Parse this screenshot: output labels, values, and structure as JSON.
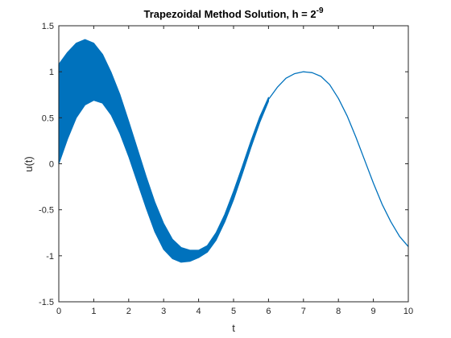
{
  "chart_data": {
    "type": "line",
    "title": "Trapezoidal Method Solution, h = 2",
    "title_superscript": "-9",
    "xlabel": "t",
    "ylabel": "u(t)",
    "xlim": [
      0,
      10
    ],
    "ylim": [
      -1.5,
      1.5
    ],
    "xticks": [
      "0",
      "1",
      "2",
      "3",
      "4",
      "5",
      "6",
      "7",
      "8",
      "9",
      "10"
    ],
    "yticks": [
      "-1.5",
      "-1",
      "-0.5",
      "0",
      "0.5",
      "1",
      "1.5"
    ],
    "grid": false,
    "legend": "none",
    "series_color": "#0072BD",
    "series": [
      {
        "kind": "band_upper",
        "x": [
          0.0,
          0.25,
          0.5,
          0.75,
          1.0,
          1.25,
          1.5,
          1.75,
          2.0,
          2.25,
          2.5,
          2.75,
          3.0,
          3.25,
          3.5,
          3.75,
          4.0,
          4.25,
          4.5,
          4.75,
          5.0,
          5.25,
          5.5,
          5.75,
          6.0
        ],
        "y": [
          1.08,
          1.21,
          1.31,
          1.35,
          1.31,
          1.19,
          0.99,
          0.75,
          0.46,
          0.16,
          -0.14,
          -0.42,
          -0.65,
          -0.82,
          -0.91,
          -0.94,
          -0.94,
          -0.89,
          -0.75,
          -0.55,
          -0.3,
          -0.03,
          0.25,
          0.51,
          0.72
        ]
      },
      {
        "kind": "band_lower",
        "x": [
          0.0,
          0.25,
          0.5,
          0.75,
          1.0,
          1.25,
          1.5,
          1.75,
          2.0,
          2.25,
          2.5,
          2.75,
          3.0,
          3.25,
          3.5,
          3.75,
          4.0,
          4.25,
          4.5,
          4.75,
          5.0,
          5.25,
          5.5,
          5.75,
          6.0
        ],
        "y": [
          0.0,
          0.27,
          0.5,
          0.64,
          0.69,
          0.66,
          0.53,
          0.33,
          0.08,
          -0.2,
          -0.48,
          -0.74,
          -0.93,
          -1.03,
          -1.07,
          -1.06,
          -1.02,
          -0.96,
          -0.83,
          -0.63,
          -0.39,
          -0.11,
          0.18,
          0.45,
          0.68
        ]
      },
      {
        "kind": "line",
        "x": [
          6.0,
          6.25,
          6.5,
          6.75,
          7.0,
          7.25,
          7.5,
          7.75,
          8.0,
          8.25,
          8.5,
          8.75,
          9.0,
          9.25,
          9.5,
          9.75,
          10.0
        ],
        "y": [
          0.7,
          0.83,
          0.93,
          0.98,
          1.0,
          0.99,
          0.95,
          0.86,
          0.71,
          0.52,
          0.29,
          0.04,
          -0.21,
          -0.44,
          -0.63,
          -0.79,
          -0.9
        ]
      }
    ]
  }
}
